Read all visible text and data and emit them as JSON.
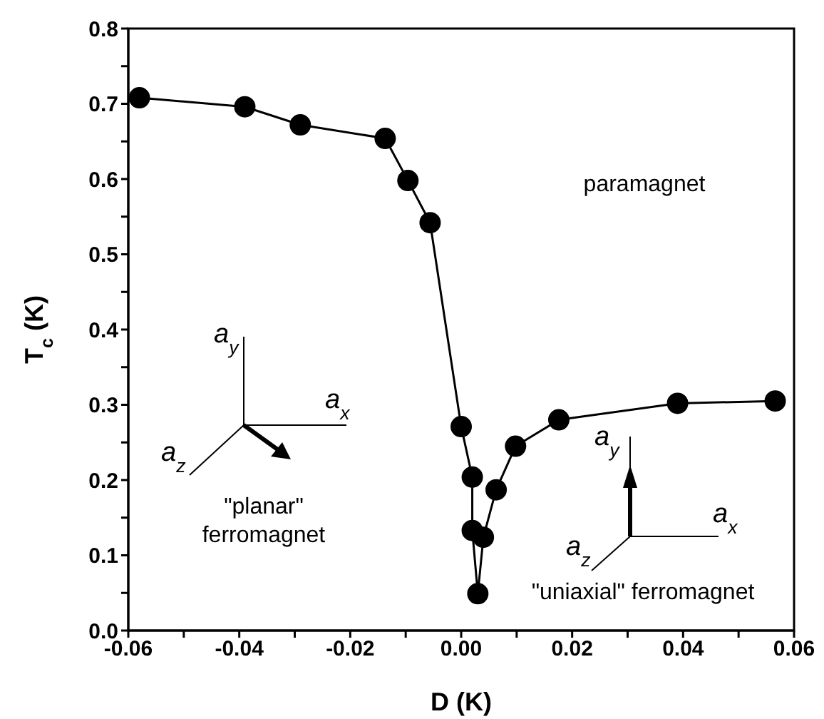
{
  "chart_data": {
    "type": "line",
    "xlabel": "D  (K)",
    "ylabel": "T$_{c}$ (K)",
    "x": [
      -0.058,
      -0.039,
      -0.029,
      -0.0137,
      -0.0096,
      -0.0056,
      0.0,
      0.002,
      0.002,
      0.003,
      0.004,
      0.0063,
      0.0098,
      0.0176,
      0.039,
      0.0566
    ],
    "series": [
      {
        "color": "#000000",
        "values": [
          0.708,
          0.696,
          0.672,
          0.654,
          0.598,
          0.542,
          0.271,
          0.204,
          0.133,
          0.049,
          0.124,
          0.187,
          0.245,
          0.28,
          0.302,
          0.305
        ]
      }
    ],
    "xlim": [
      -0.06,
      0.06
    ],
    "xticks": [
      -0.06,
      {
        "value": -0.05,
        "label": null
      },
      -0.04,
      {
        "value": -0.03,
        "label": null
      },
      -0.02,
      {
        "value": -0.01,
        "label": null
      },
      {
        "value": 0,
        "label": "0.00"
      },
      {
        "value": 0.01,
        "label": null
      },
      0.02,
      {
        "value": 0.03,
        "label": null
      },
      0.04,
      {
        "value": 0.05,
        "label": null
      },
      0.06
    ],
    "ylim": [
      0,
      0.8
    ],
    "yticks": [
      {
        "value": 0,
        "label": "0.0"
      },
      {
        "value": 0.05,
        "label": null
      },
      0.1,
      {
        "value": 0.15,
        "label": null
      },
      0.2,
      {
        "value": 0.25,
        "label": null
      },
      0.3,
      {
        "value": 0.35,
        "label": null
      },
      0.4,
      {
        "value": 0.45,
        "label": null
      },
      0.5,
      {
        "value": 0.55,
        "label": null
      },
      0.6,
      {
        "value": 0.65,
        "label": null
      },
      0.7,
      {
        "value": 0.75,
        "label": null
      },
      0.8
    ],
    "annotations": [
      "paramagnet",
      "\"planar\" ferromagnet",
      "\"uniaxial\" ferromagnet",
      "a$_{y}$",
      "a$_{x}$",
      "a$_{z}$",
      "a$_{y}$",
      "a$_{x}$",
      "a$_{z}$"
    ],
    "marker": "circle",
    "line_style": "solid",
    "grid": false,
    "legend": false
  }
}
